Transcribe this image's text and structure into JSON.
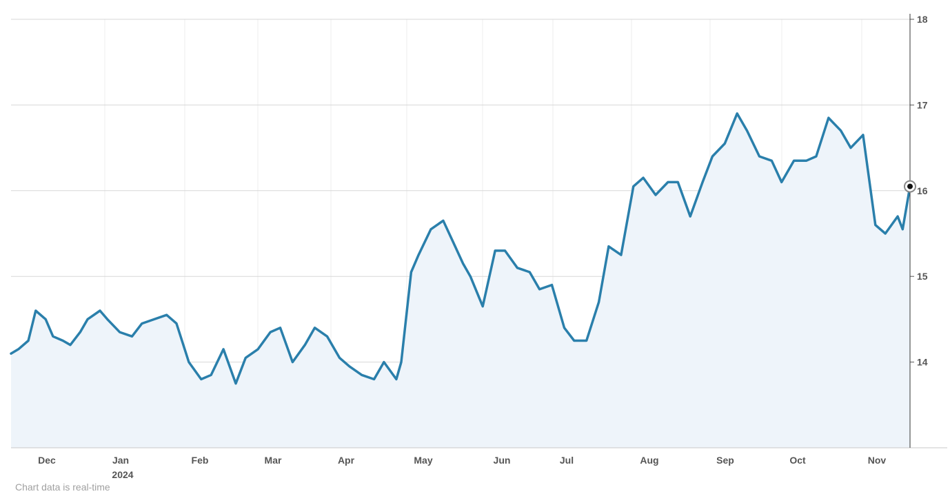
{
  "chart_data": {
    "type": "area",
    "title": "",
    "xlabel": "",
    "ylabel": "",
    "ylim": [
      13,
      18
    ],
    "y_ticks": [
      "14",
      "15",
      "16",
      "17",
      "18"
    ],
    "x_ticks": [
      "Dec",
      "Jan",
      "Feb",
      "Mar",
      "Apr",
      "May",
      "Jun",
      "Jul",
      "Aug",
      "Sep",
      "Oct",
      "Nov"
    ],
    "year_label": "2024",
    "grid": true,
    "colors": {
      "line": "#2a7fab",
      "fill": "#eef4fa",
      "grid": "#d7d7d7"
    },
    "series": [
      {
        "x": [
          "2023-11-20",
          "2023-11-23",
          "2023-11-27",
          "2023-11-30",
          "2023-12-04",
          "2023-12-07",
          "2023-12-11",
          "2023-12-14",
          "2023-12-18",
          "2023-12-21",
          "2023-12-26",
          "2023-12-29",
          "2024-01-03",
          "2024-01-08",
          "2024-01-12",
          "2024-01-17",
          "2024-01-22",
          "2024-01-26",
          "2024-01-31",
          "2024-02-05",
          "2024-02-09",
          "2024-02-14",
          "2024-02-19",
          "2024-02-23",
          "2024-02-28",
          "2024-03-04",
          "2024-03-08",
          "2024-03-13",
          "2024-03-18",
          "2024-03-22",
          "2024-03-27",
          "2024-04-01",
          "2024-04-05",
          "2024-04-10",
          "2024-04-15",
          "2024-04-19",
          "2024-04-24",
          "2024-04-26",
          "2024-04-30",
          "2024-05-03",
          "2024-05-08",
          "2024-05-13",
          "2024-05-17",
          "2024-05-21",
          "2024-05-24",
          "2024-05-29",
          "2024-06-03",
          "2024-06-07",
          "2024-06-12",
          "2024-06-17",
          "2024-06-21",
          "2024-06-26",
          "2024-07-01",
          "2024-07-05",
          "2024-07-10",
          "2024-07-15",
          "2024-07-19",
          "2024-07-24",
          "2024-07-29",
          "2024-08-02",
          "2024-08-07",
          "2024-08-12",
          "2024-08-16",
          "2024-08-21",
          "2024-08-26",
          "2024-08-30",
          "2024-09-04",
          "2024-09-09",
          "2024-09-13",
          "2024-09-18",
          "2024-09-23",
          "2024-09-27",
          "2024-10-02",
          "2024-10-07",
          "2024-10-11",
          "2024-10-16",
          "2024-10-21",
          "2024-10-25",
          "2024-10-30",
          "2024-11-04",
          "2024-11-08",
          "2024-11-13",
          "2024-11-15",
          "2024-11-18"
        ],
        "values": [
          14.1,
          14.15,
          14.25,
          14.6,
          14.5,
          14.3,
          14.25,
          14.2,
          14.35,
          14.5,
          14.6,
          14.5,
          14.35,
          14.3,
          14.45,
          14.5,
          14.55,
          14.45,
          14.0,
          13.8,
          13.85,
          14.15,
          13.75,
          14.05,
          14.15,
          14.35,
          14.4,
          14.0,
          14.2,
          14.4,
          14.3,
          14.05,
          13.95,
          13.85,
          13.8,
          14.0,
          13.8,
          14.0,
          15.05,
          15.25,
          15.55,
          15.65,
          15.4,
          15.15,
          15.0,
          14.65,
          15.3,
          15.3,
          15.1,
          15.05,
          14.85,
          14.9,
          14.4,
          14.25,
          14.25,
          14.7,
          15.35,
          15.25,
          16.05,
          16.15,
          15.95,
          16.1,
          16.1,
          15.7,
          16.1,
          16.4,
          16.55,
          16.9,
          16.7,
          16.4,
          16.35,
          16.1,
          16.35,
          16.35,
          16.4,
          16.85,
          16.7,
          16.5,
          16.65,
          15.6,
          15.5,
          15.7,
          15.55,
          16.05
        ]
      }
    ]
  },
  "footnote": "Chart data is real-time"
}
